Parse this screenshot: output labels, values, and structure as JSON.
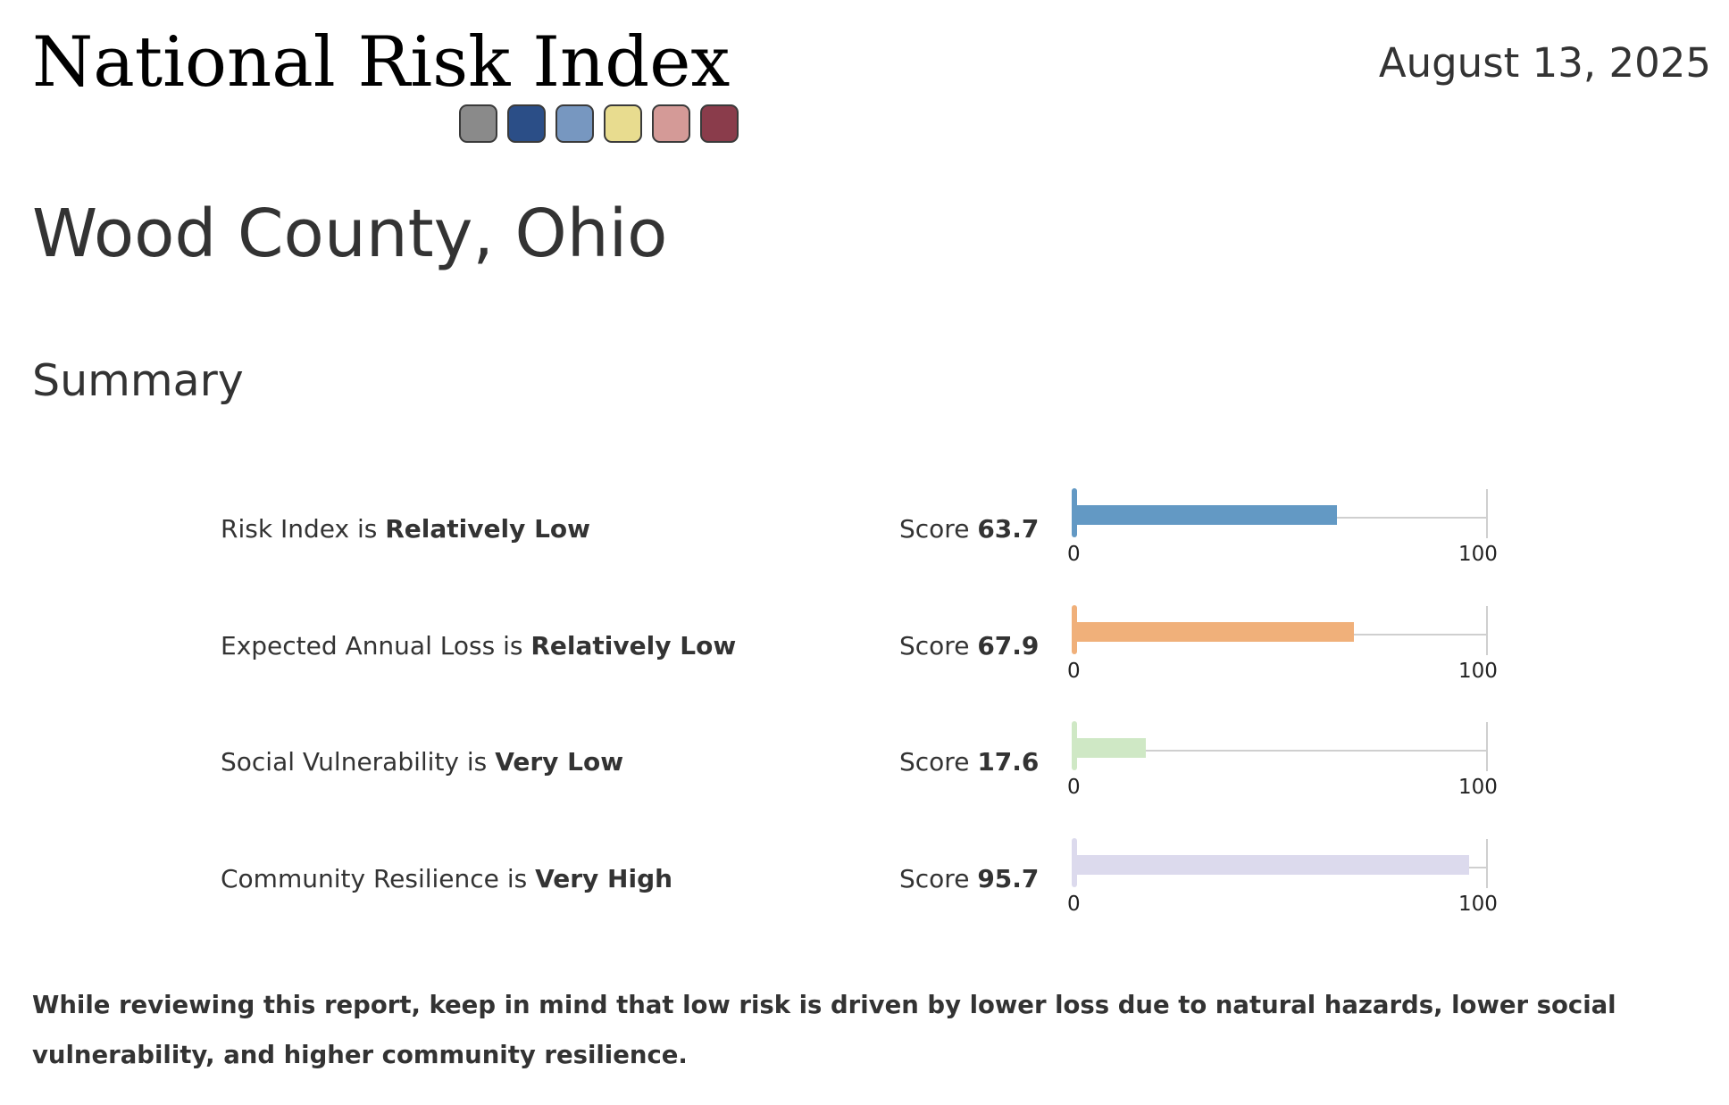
{
  "header": {
    "app_title": "National Risk Index",
    "date": "August 13, 2025",
    "swatch_colors": [
      "#8a8a8a",
      "#2b4e87",
      "#7797c0",
      "#e8dc8f",
      "#d49a97",
      "#8a3c4b"
    ]
  },
  "location": {
    "name": "Wood County, Ohio"
  },
  "summary": {
    "heading": "Summary",
    "score_prefix": "Score",
    "scale_min": "0",
    "scale_max": "100",
    "rows": [
      {
        "metric": "Risk Index",
        "connector": "is",
        "rating": "Relatively Low",
        "score": "63.7",
        "value": 63.7,
        "color": "#6399c4"
      },
      {
        "metric": "Expected Annual Loss",
        "connector": "is",
        "rating": "Relatively Low",
        "score": "67.9",
        "value": 67.9,
        "color": "#f0b07a"
      },
      {
        "metric": "Social Vulnerability",
        "connector": "is",
        "rating": "Very Low",
        "score": "17.6",
        "value": 17.6,
        "color": "#cfe8c5"
      },
      {
        "metric": "Community Resilience",
        "connector": "is",
        "rating": "Very High",
        "score": "95.7",
        "value": 95.7,
        "color": "#dcdaed"
      }
    ]
  },
  "note": "While reviewing this report, keep in mind that low risk is driven by lower loss due to natural hazards, lower social vulnerability, and higher community resilience."
}
